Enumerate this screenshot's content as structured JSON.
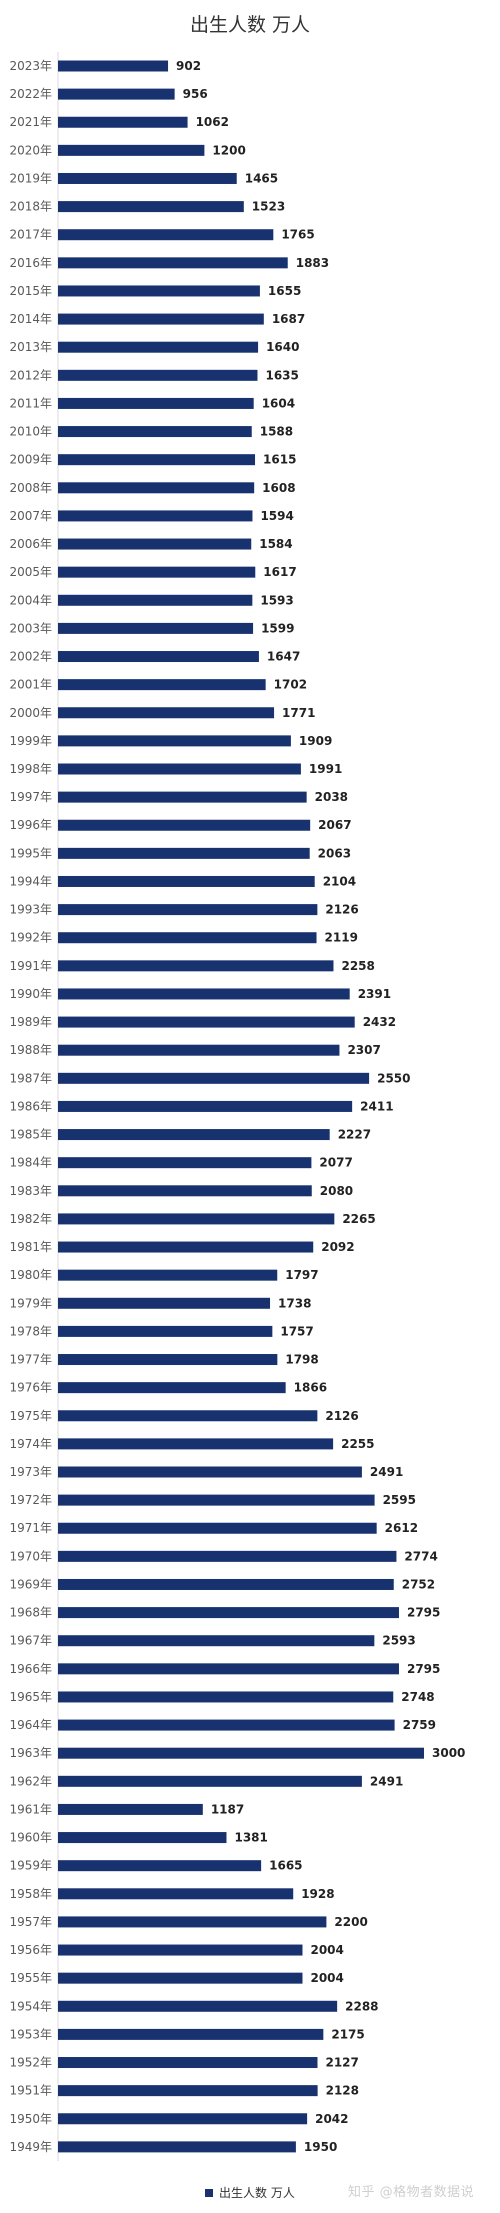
{
  "chart_data": {
    "type": "bar",
    "orientation": "horizontal",
    "title": "出生人数 万人",
    "color": "#17326F",
    "legend": {
      "label": "出生人数 万人",
      "placement": "bottom"
    },
    "categories": [
      "2023年",
      "2022年",
      "2021年",
      "2020年",
      "2019年",
      "2018年",
      "2017年",
      "2016年",
      "2015年",
      "2014年",
      "2013年",
      "2012年",
      "2011年",
      "2010年",
      "2009年",
      "2008年",
      "2007年",
      "2006年",
      "2005年",
      "2004年",
      "2003年",
      "2002年",
      "2001年",
      "2000年",
      "1999年",
      "1998年",
      "1997年",
      "1996年",
      "1995年",
      "1994年",
      "1993年",
      "1992年",
      "1991年",
      "1990年",
      "1989年",
      "1988年",
      "1987年",
      "1986年",
      "1985年",
      "1984年",
      "1983年",
      "1982年",
      "1981年",
      "1980年",
      "1979年",
      "1978年",
      "1977年",
      "1976年",
      "1975年",
      "1974年",
      "1973年",
      "1972年",
      "1971年",
      "1970年",
      "1969年",
      "1968年",
      "1967年",
      "1966年",
      "1965年",
      "1964年",
      "1963年",
      "1962年",
      "1961年",
      "1960年",
      "1959年",
      "1958年",
      "1957年",
      "1956年",
      "1955年",
      "1954年",
      "1953年",
      "1952年",
      "1951年",
      "1950年",
      "1949年"
    ],
    "values": [
      902,
      956,
      1062,
      1200,
      1465,
      1523,
      1765,
      1883,
      1655,
      1687,
      1640,
      1635,
      1604,
      1588,
      1615,
      1608,
      1594,
      1584,
      1617,
      1593,
      1599,
      1647,
      1702,
      1771,
      1909,
      1991,
      2038,
      2067,
      2063,
      2104,
      2126,
      2119,
      2258,
      2391,
      2432,
      2307,
      2550,
      2411,
      2227,
      2077,
      2080,
      2265,
      2092,
      1797,
      1738,
      1757,
      1798,
      1866,
      2126,
      2255,
      2491,
      2595,
      2612,
      2774,
      2752,
      2795,
      2593,
      2795,
      2748,
      2759,
      3000,
      2491,
      1187,
      1381,
      1665,
      1928,
      2200,
      2004,
      2004,
      2288,
      2175,
      2127,
      2128,
      2042,
      1950
    ],
    "xlim": [
      0,
      3000
    ],
    "grid": false
  },
  "watermark": "知乎 @格物者数据说"
}
